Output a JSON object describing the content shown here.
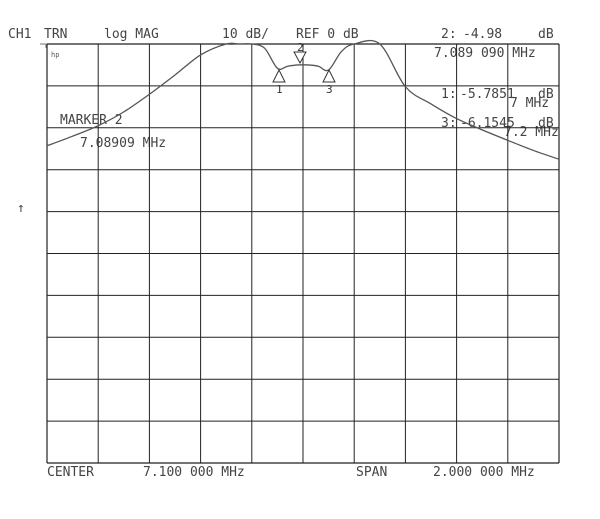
{
  "header": {
    "channel": "CH1",
    "mode": "TRN",
    "format": "log MAG",
    "scale": "10 dB/",
    "reference": "REF 0 dB"
  },
  "active_marker_readout": {
    "label": "2:",
    "value": "-4.98",
    "unit": "dB",
    "frequency": "7.089 090 MHz"
  },
  "marker_readouts": [
    {
      "label": "1:",
      "value": "-5.7851",
      "unit": "dB",
      "frequency": "7 MHz"
    },
    {
      "label": "3:",
      "value": "-6.1545",
      "unit": "dB",
      "frequency": "7.2 MHz"
    }
  ],
  "marker_info": {
    "title": "MARKER 2",
    "frequency": "7.08909 MHz"
  },
  "reference_arrow": "↑",
  "hp_logo": "hp",
  "footer": {
    "center_label": "CENTER",
    "center_value": "7.100 000 MHz",
    "span_label": "SPAN",
    "span_value": "2.000 000 MHz"
  },
  "markers": [
    {
      "number": "1",
      "freq_mhz": 7.0,
      "level_db": -5.7851,
      "symbol": "up-triangle"
    },
    {
      "number": "2",
      "freq_mhz": 7.08909,
      "level_db": -4.98,
      "symbol": "down-triangle"
    },
    {
      "number": "3",
      "freq_mhz": 7.2,
      "level_db": -6.1545,
      "symbol": "up-triangle"
    }
  ],
  "colors": {
    "trace": "#555555",
    "grid": "#222222",
    "text": "#444444",
    "background": "#ffffff"
  },
  "chart_data": {
    "type": "line",
    "center_mhz": 7.1,
    "span_mhz": 2.0,
    "xlim": [
      6.1,
      8.1
    ],
    "ref_db": 0,
    "scale_db_per_div": 10,
    "ylim": [
      -100,
      0
    ],
    "grid": true,
    "divisions": {
      "x": 10,
      "y": 10
    },
    "series": [
      {
        "x": [
          6.1,
          6.2,
          6.3,
          6.4,
          6.5,
          6.6,
          6.7,
          6.8,
          6.85,
          6.9,
          6.95,
          7.0,
          7.04,
          7.08,
          7.12,
          7.16,
          7.2,
          7.25,
          7.3,
          7.4,
          7.5,
          7.6,
          7.7,
          7.8,
          7.9,
          8.0,
          8.1
        ],
        "y": [
          -24.3,
          -22.0,
          -19.5,
          -16.2,
          -12.0,
          -7.4,
          -2.6,
          0.0,
          0.0,
          0.0,
          -1.0,
          -5.8,
          -5.3,
          -5.0,
          -5.0,
          -5.3,
          -6.2,
          -1.8,
          0.0,
          0.0,
          -10.2,
          -14.3,
          -17.8,
          -20.5,
          -23.0,
          -25.4,
          -27.5
        ]
      }
    ]
  }
}
